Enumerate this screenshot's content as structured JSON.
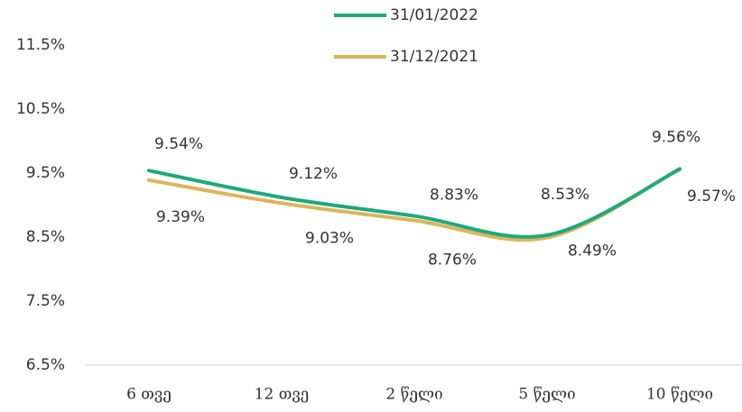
{
  "chart_data": {
    "type": "line",
    "categories": [
      "6 თვე",
      "12 თვე",
      "2 წელი",
      "5 წელი",
      "10 წელი"
    ],
    "series": [
      {
        "name": "31/01/2022",
        "color": "#1ea97c",
        "values": [
          9.54,
          9.12,
          8.83,
          8.53,
          9.56
        ],
        "value_labels": [
          "9.54%",
          "9.12%",
          "8.83%",
          "8.53%",
          "9.56%"
        ]
      },
      {
        "name": "31/12/2021",
        "color": "#dbb55c",
        "values": [
          9.39,
          9.03,
          8.76,
          8.49,
          9.57
        ],
        "value_labels": [
          "9.39%",
          "9.03%",
          "8.76%",
          "8.49%",
          "9.57%"
        ]
      }
    ],
    "ylim": [
      6.5,
      11.5
    ],
    "yticks": [
      {
        "value": 6.5,
        "label": "6.5%"
      },
      {
        "value": 7.5,
        "label": "7.5%"
      },
      {
        "value": 8.5,
        "label": "8.5%"
      },
      {
        "value": 9.5,
        "label": "9.5%"
      },
      {
        "value": 10.5,
        "label": "10.5%"
      },
      {
        "value": 11.5,
        "label": "11.5%"
      }
    ],
    "legend": "top",
    "grid": false
  }
}
